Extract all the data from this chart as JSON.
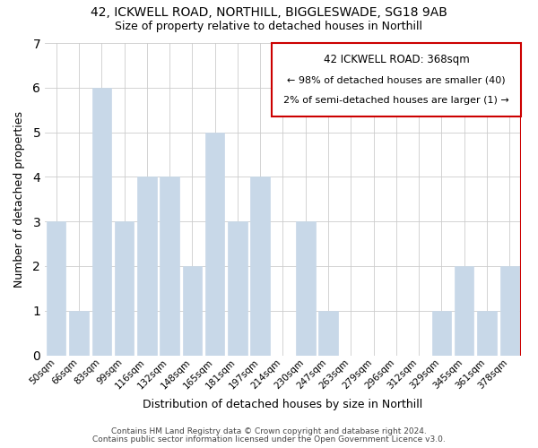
{
  "title_line1": "42, ICKWELL ROAD, NORTHILL, BIGGLESWADE, SG18 9AB",
  "title_line2": "Size of property relative to detached houses in Northill",
  "xlabel": "Distribution of detached houses by size in Northill",
  "ylabel": "Number of detached properties",
  "bar_labels": [
    "50sqm",
    "66sqm",
    "83sqm",
    "99sqm",
    "116sqm",
    "132sqm",
    "148sqm",
    "165sqm",
    "181sqm",
    "197sqm",
    "214sqm",
    "230sqm",
    "247sqm",
    "263sqm",
    "279sqm",
    "296sqm",
    "312sqm",
    "329sqm",
    "345sqm",
    "361sqm",
    "378sqm"
  ],
  "bar_heights": [
    3,
    1,
    6,
    3,
    4,
    4,
    2,
    5,
    3,
    4,
    0,
    3,
    1,
    0,
    0,
    0,
    0,
    1,
    2,
    1,
    2
  ],
  "bar_color": "#c8d8e8",
  "highlight_bar_index": 20,
  "highlight_line_color": "#cc0000",
  "ylim": [
    0,
    7
  ],
  "yticks": [
    0,
    1,
    2,
    3,
    4,
    5,
    6,
    7
  ],
  "annotation_title": "42 ICKWELL ROAD: 368sqm",
  "annotation_line1": "← 98% of detached houses are smaller (40)",
  "annotation_line2": "2% of semi-detached houses are larger (1) →",
  "footer_line1": "Contains HM Land Registry data © Crown copyright and database right 2024.",
  "footer_line2": "Contains public sector information licensed under the Open Government Licence v3.0.",
  "bg_color": "#ffffff",
  "grid_color": "#cccccc"
}
